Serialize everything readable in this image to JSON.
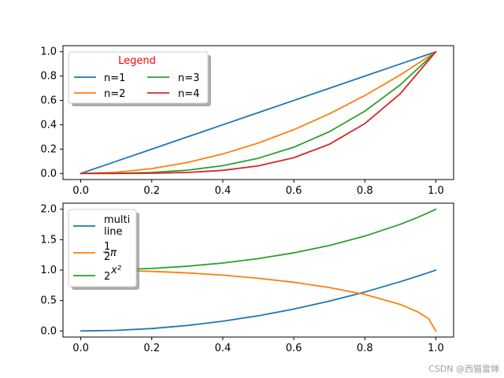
{
  "figure": {
    "watermark": "CSDN @西猫雷婶"
  },
  "colors": {
    "series1": "#1f77b4",
    "series2": "#ff7f0e",
    "series3": "#2ca02c",
    "series4": "#d62728",
    "legend_title": "#ff0000"
  },
  "chart_data": [
    {
      "type": "line",
      "title": "",
      "xlabel": "",
      "ylabel": "",
      "xlim": [
        -0.05,
        1.05
      ],
      "ylim": [
        -0.05,
        1.05
      ],
      "xticks": [
        0.0,
        0.2,
        0.4,
        0.6,
        0.8,
        1.0
      ],
      "xtick_labels": [
        "0.0",
        "0.2",
        "0.4",
        "0.6",
        "0.8",
        "1.0"
      ],
      "yticks": [
        0.0,
        0.2,
        0.4,
        0.6,
        0.8,
        1.0
      ],
      "ytick_labels": [
        "0.0",
        "0.2",
        "0.4",
        "0.6",
        "0.8",
        "1.0"
      ],
      "grid": false,
      "legend": {
        "title": "Legend",
        "placement": "upper-left",
        "columns": 2,
        "entries": [
          "n=1",
          "n=2",
          "n=3",
          "n=4"
        ]
      },
      "x": [
        0.0,
        0.1,
        0.2,
        0.3,
        0.4,
        0.5,
        0.6,
        0.7,
        0.8,
        0.9,
        1.0
      ],
      "series": [
        {
          "name": "n=1",
          "color": "#1f77b4",
          "values": [
            0.0,
            0.1,
            0.2,
            0.3,
            0.4,
            0.5,
            0.6,
            0.7,
            0.8,
            0.9,
            1.0
          ]
        },
        {
          "name": "n=2",
          "color": "#ff7f0e",
          "values": [
            0.0,
            0.01,
            0.04,
            0.09,
            0.16,
            0.25,
            0.36,
            0.49,
            0.64,
            0.81,
            1.0
          ]
        },
        {
          "name": "n=3",
          "color": "#2ca02c",
          "values": [
            0.0,
            0.001,
            0.008,
            0.027,
            0.064,
            0.125,
            0.216,
            0.343,
            0.512,
            0.729,
            1.0
          ]
        },
        {
          "name": "n=4",
          "color": "#d62728",
          "values": [
            0.0,
            0.0001,
            0.0016,
            0.0081,
            0.0256,
            0.0625,
            0.1296,
            0.2401,
            0.4096,
            0.6561,
            1.0
          ]
        }
      ]
    },
    {
      "type": "line",
      "title": "",
      "xlabel": "",
      "ylabel": "",
      "xlim": [
        -0.05,
        1.05
      ],
      "ylim": [
        -0.1,
        2.1
      ],
      "xticks": [
        0.0,
        0.2,
        0.4,
        0.6,
        0.8,
        1.0
      ],
      "xtick_labels": [
        "0.0",
        "0.2",
        "0.4",
        "0.6",
        "0.8",
        "1.0"
      ],
      "yticks": [
        0.0,
        0.5,
        1.0,
        1.5,
        2.0
      ],
      "ytick_labels": [
        "0.0",
        "0.5",
        "1.0",
        "1.5",
        "2.0"
      ],
      "grid": false,
      "legend": {
        "placement": "upper-left",
        "columns": 1,
        "entries": [
          "multi\nline",
          "½π",
          "2^(x²)"
        ]
      },
      "x": [
        0.0,
        0.1,
        0.2,
        0.3,
        0.4,
        0.5,
        0.6,
        0.7,
        0.8,
        0.9,
        0.95,
        0.98,
        1.0
      ],
      "series": [
        {
          "name": "multi line",
          "color": "#1f77b4",
          "values": [
            0.0,
            0.01,
            0.04,
            0.09,
            0.16,
            0.25,
            0.36,
            0.49,
            0.64,
            0.81,
            0.9025,
            0.9604,
            1.0
          ]
        },
        {
          "name": "½π",
          "color": "#ff7f0e",
          "values": [
            1.0,
            0.995,
            0.98,
            0.954,
            0.917,
            0.866,
            0.8,
            0.714,
            0.6,
            0.436,
            0.312,
            0.199,
            0.0
          ]
        },
        {
          "name": "2^(x²)",
          "color": "#2ca02c",
          "values": [
            1.0,
            1.007,
            1.028,
            1.064,
            1.117,
            1.189,
            1.284,
            1.405,
            1.559,
            1.753,
            1.869,
            1.946,
            2.0
          ]
        }
      ]
    }
  ]
}
